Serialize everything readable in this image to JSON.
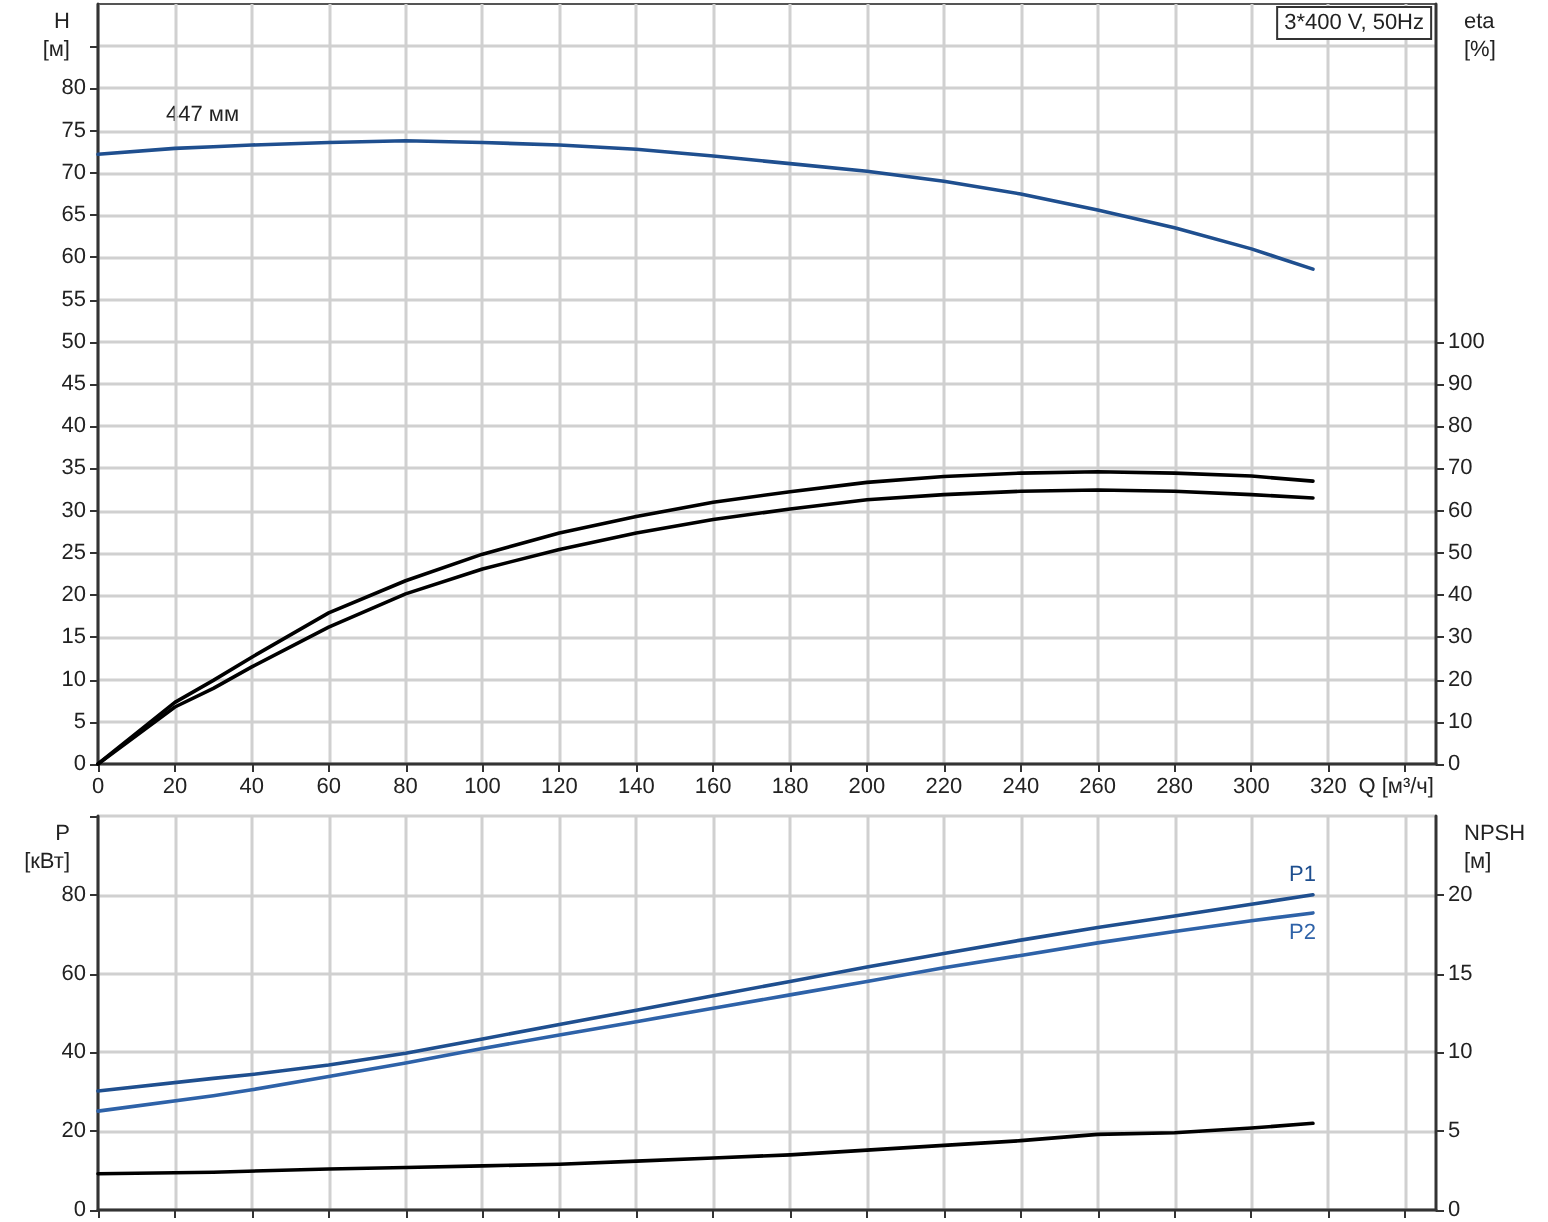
{
  "chart_data": [
    {
      "type": "line",
      "title": "3*400 V, 50Hz",
      "xlabel": "Q [м³/ч]",
      "ylabel": "H [м]",
      "y2label": "eta [%]",
      "annotations": [
        "447 мм"
      ],
      "xlim": [
        0,
        348
      ],
      "xticks": [
        0,
        20,
        40,
        60,
        80,
        100,
        120,
        140,
        160,
        180,
        200,
        220,
        240,
        260,
        280,
        300,
        320,
        {
          "value": 340,
          "label": null
        }
      ],
      "ylim": [
        0,
        90
      ],
      "yticks": [
        0,
        5,
        10,
        15,
        20,
        25,
        30,
        35,
        40,
        45,
        50,
        55,
        60,
        65,
        70,
        75,
        80,
        {
          "value": 85,
          "label": null
        }
      ],
      "y2lim": [
        0,
        180
      ],
      "y2ticks": [
        0,
        10,
        20,
        30,
        40,
        50,
        60,
        70,
        80,
        90,
        100
      ],
      "grid": true,
      "legend": false,
      "marker": "none",
      "line_style": "solid",
      "series": [
        {
          "color": "#1f4f8f",
          "x": [
            0,
            20,
            30,
            40,
            60,
            80,
            100,
            120,
            140,
            160,
            180,
            200,
            220,
            240,
            260,
            280,
            300,
            316
          ],
          "values": [
            72.2,
            72.9,
            73.1,
            73.3,
            73.6,
            73.8,
            73.6,
            73.3,
            72.8,
            72.0,
            71.1,
            70.2,
            69.0,
            67.5,
            65.6,
            63.5,
            61.0,
            58.6
          ]
        },
        {
          "color": "#000000",
          "axis": "y2",
          "x": [
            0,
            20,
            30,
            40,
            60,
            80,
            100,
            120,
            140,
            160,
            180,
            200,
            220,
            240,
            260,
            280,
            300,
            316
          ],
          "values": [
            0,
            14.6,
            19.8,
            25.3,
            35.8,
            43.4,
            49.7,
            54.7,
            58.6,
            62.0,
            64.5,
            66.7,
            68.1,
            68.9,
            69.2,
            68.9,
            68.2,
            67.0
          ]
        },
        {
          "color": "#000000",
          "axis": "y2",
          "x": [
            0,
            20,
            30,
            40,
            60,
            80,
            100,
            120,
            140,
            160,
            180,
            200,
            220,
            240,
            260,
            280,
            300,
            316
          ],
          "values": [
            0,
            13.5,
            17.9,
            23.0,
            32.4,
            40.3,
            46.2,
            50.8,
            54.7,
            57.9,
            60.4,
            62.6,
            63.8,
            64.6,
            64.9,
            64.6,
            63.8,
            63.0
          ]
        }
      ]
    },
    {
      "type": "line",
      "ylabel": "P [кВт]",
      "y2label": "NPSH [м]",
      "tick_labels": "y",
      "xlim": [
        0,
        348
      ],
      "xticks": [
        0,
        20,
        40,
        60,
        80,
        100,
        120,
        140,
        160,
        180,
        200,
        220,
        240,
        260,
        280,
        300,
        320,
        340
      ],
      "ylim": [
        0,
        100
      ],
      "yticks": [
        0,
        20,
        40,
        60,
        80,
        {
          "value": 100,
          "label": null
        }
      ],
      "y2lim": [
        0,
        25
      ],
      "y2ticks": [
        0,
        5,
        10,
        15,
        20
      ],
      "grid": true,
      "legend": false,
      "marker": "none",
      "line_style": "solid",
      "series": [
        {
          "name": "P1",
          "color": "#1f4f8f",
          "x": [
            0,
            30,
            40,
            60,
            80,
            100,
            120,
            140,
            160,
            180,
            200,
            220,
            240,
            260,
            280,
            300,
            316
          ],
          "values": [
            30.2,
            33.4,
            34.4,
            36.8,
            39.8,
            43.4,
            47.1,
            50.7,
            54.4,
            58.0,
            61.7,
            65.1,
            68.5,
            71.7,
            74.6,
            77.6,
            80.0
          ]
        },
        {
          "name": "P2",
          "color": "#2e62a8",
          "x": [
            0,
            30,
            40,
            60,
            80,
            100,
            120,
            140,
            160,
            180,
            200,
            220,
            240,
            260,
            280,
            300,
            316
          ],
          "values": [
            25.1,
            29.0,
            30.5,
            33.9,
            37.3,
            41.0,
            44.4,
            47.8,
            51.2,
            54.6,
            58.0,
            61.5,
            64.6,
            67.8,
            70.7,
            73.4,
            75.4
          ]
        },
        {
          "color": "#000000",
          "axis": "y2",
          "x": [
            0,
            30,
            60,
            80,
            100,
            120,
            140,
            160,
            180,
            200,
            220,
            240,
            260,
            280,
            300,
            316
          ],
          "values": [
            2.3,
            2.4,
            2.6,
            2.7,
            2.8,
            2.9,
            3.1,
            3.3,
            3.5,
            3.8,
            4.1,
            4.4,
            4.8,
            4.9,
            5.2,
            5.5
          ]
        }
      ]
    }
  ]
}
